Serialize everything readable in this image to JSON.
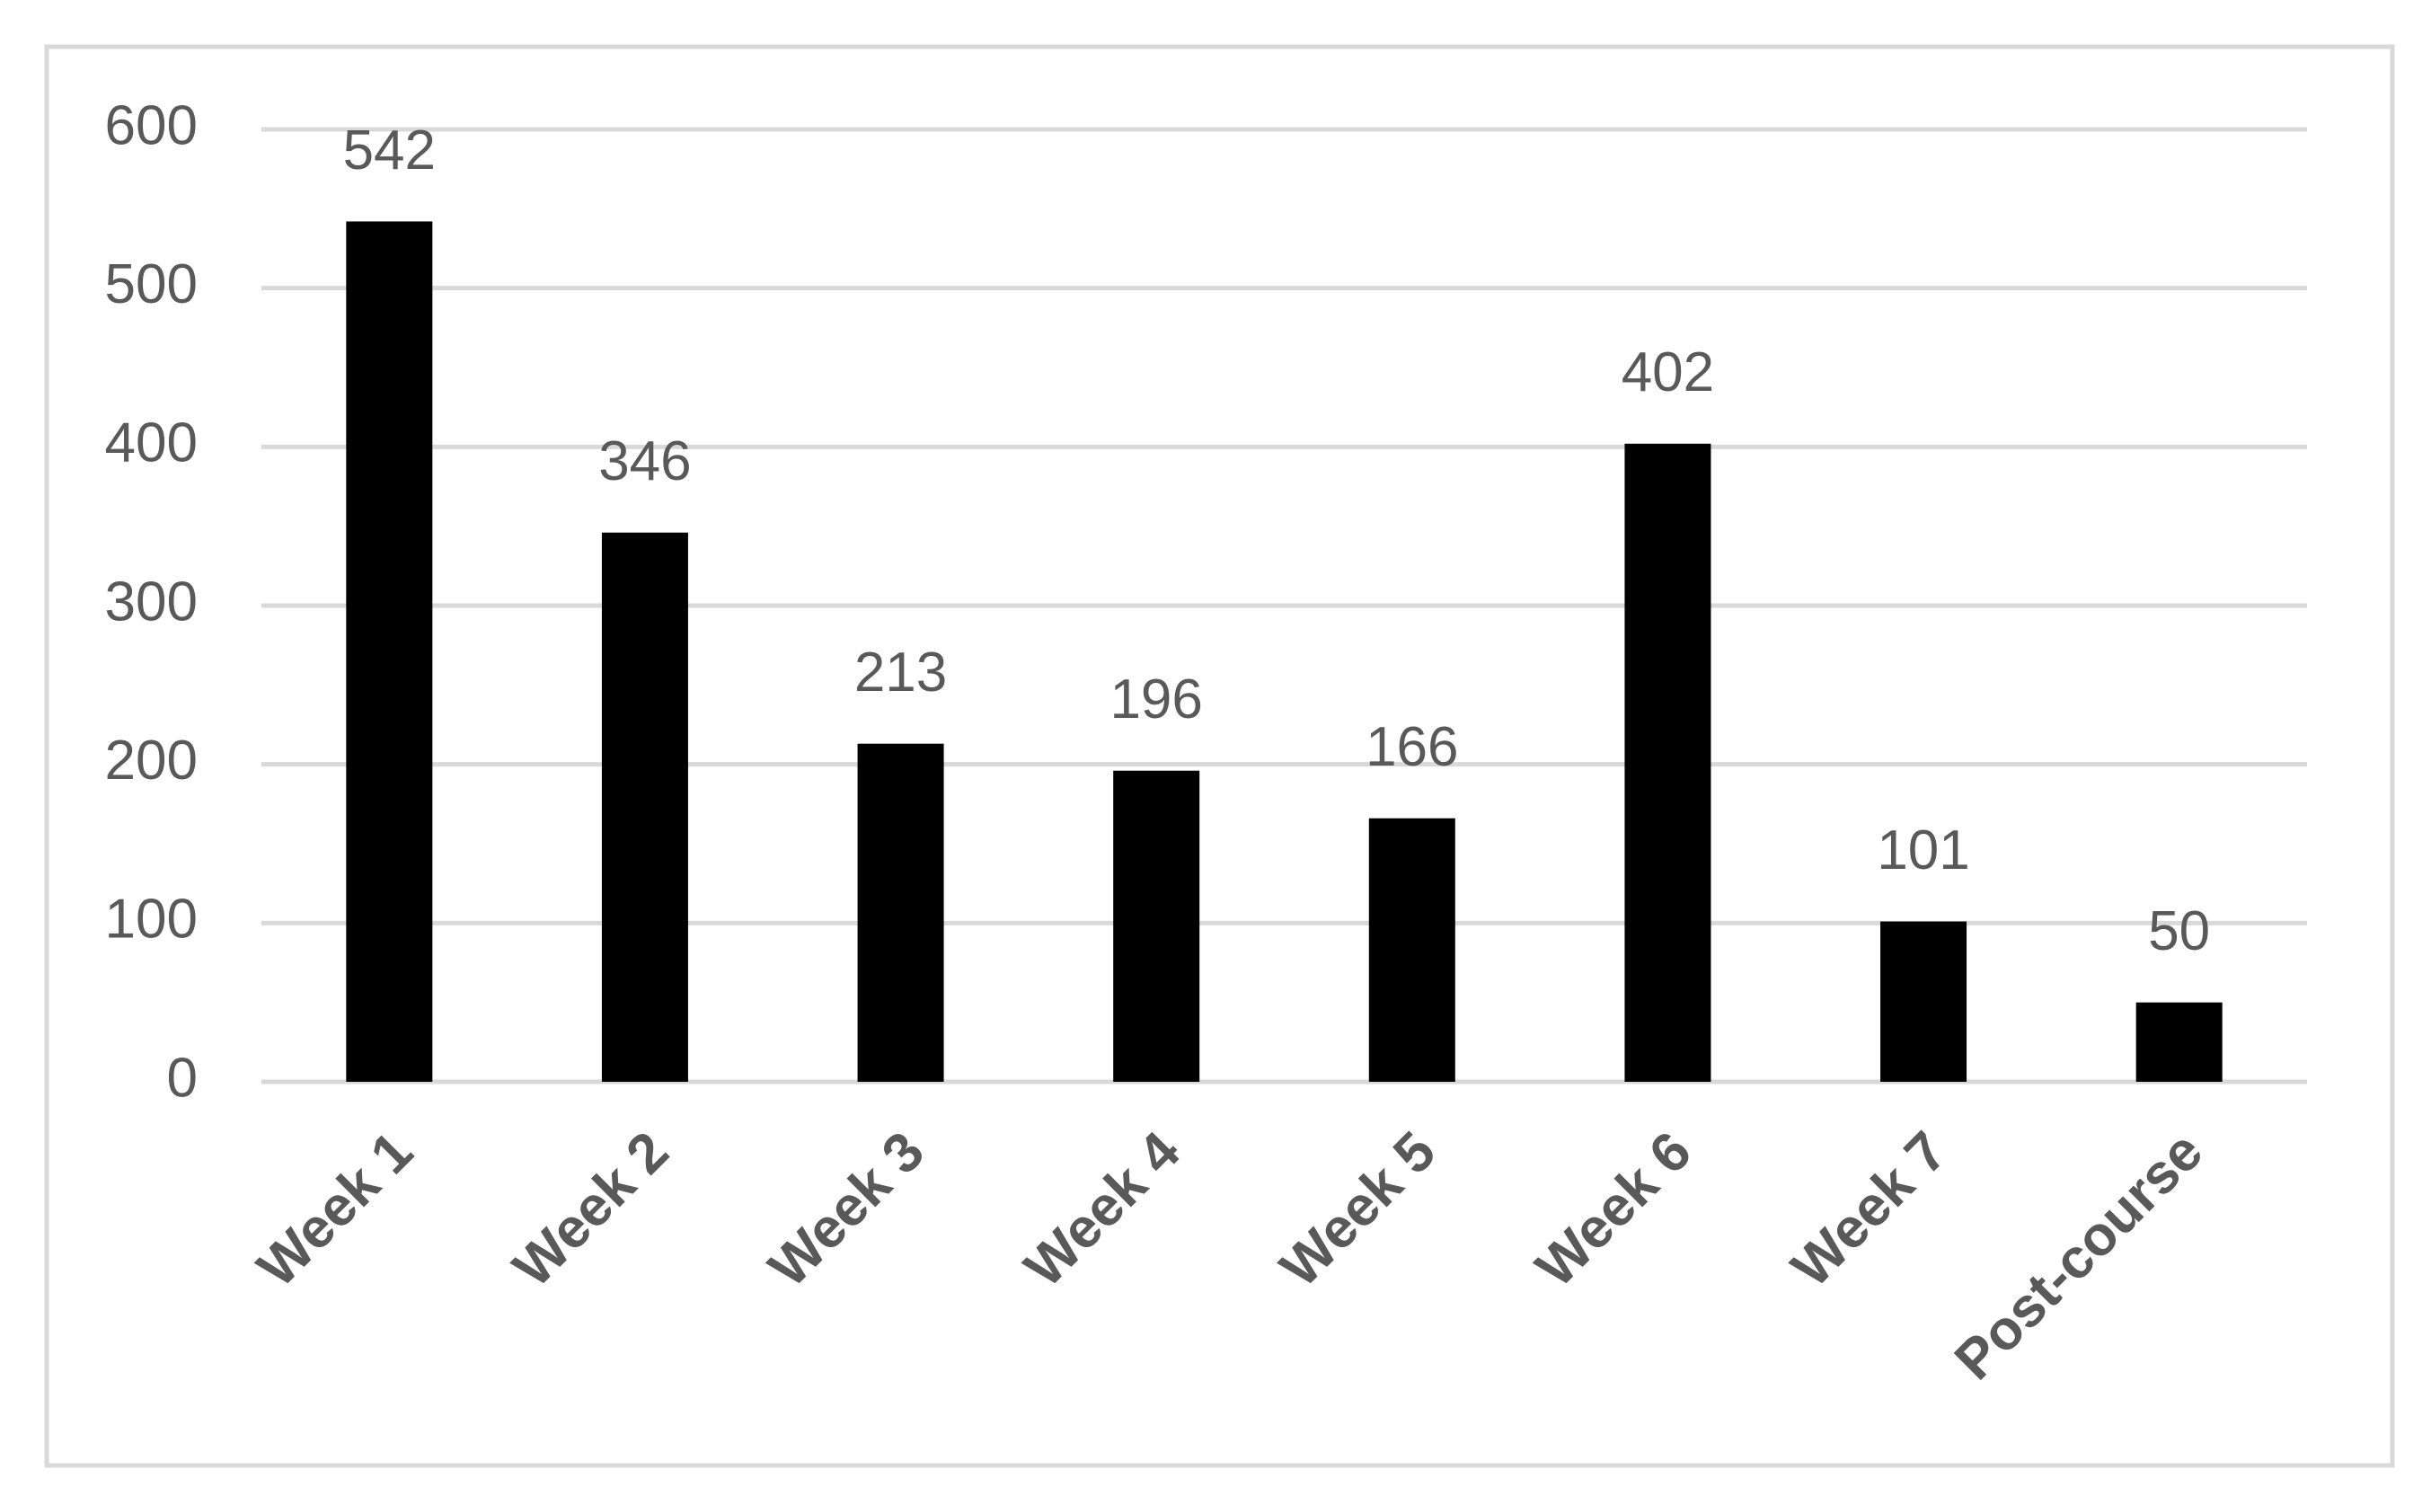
{
  "chart_data": {
    "type": "bar",
    "categories": [
      "Week 1",
      "Week 2",
      "Week 3",
      "Week 4",
      "Week 5",
      "Week 6",
      "Week 7",
      "Post-course"
    ],
    "values": [
      542,
      346,
      213,
      196,
      166,
      402,
      101,
      50
    ],
    "color": "#000000",
    "ylim": [
      0,
      600
    ],
    "yticks": [
      0,
      100,
      200,
      300,
      400,
      500,
      600
    ],
    "grid": true,
    "data_labels": true
  }
}
